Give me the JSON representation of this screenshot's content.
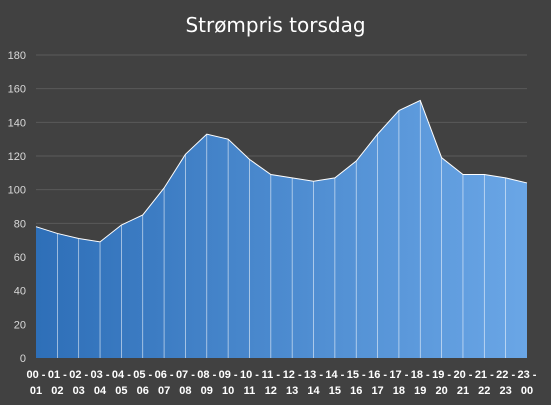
{
  "chart_data": {
    "type": "area",
    "title": "Strømpris torsdag",
    "xlabel": "",
    "ylabel": "",
    "ylim": [
      0,
      180
    ],
    "yticks": [
      0,
      20,
      40,
      60,
      80,
      100,
      120,
      140,
      160,
      180
    ],
    "grid": true,
    "legend": "none",
    "categories": [
      {
        "line1": "00 -",
        "line2": "01"
      },
      {
        "line1": "01 -",
        "line2": "02"
      },
      {
        "line1": "02 -",
        "line2": "03"
      },
      {
        "line1": "03 -",
        "line2": "04"
      },
      {
        "line1": "04 -",
        "line2": "05"
      },
      {
        "line1": "05 -",
        "line2": "06"
      },
      {
        "line1": "06 -",
        "line2": "07"
      },
      {
        "line1": "07 -",
        "line2": "08"
      },
      {
        "line1": "08 -",
        "line2": "09"
      },
      {
        "line1": "09 -",
        "line2": "10"
      },
      {
        "line1": "10 -",
        "line2": "11"
      },
      {
        "line1": "11 -",
        "line2": "12"
      },
      {
        "line1": "12 -",
        "line2": "13"
      },
      {
        "line1": "13 -",
        "line2": "14"
      },
      {
        "line1": "14 -",
        "line2": "15"
      },
      {
        "line1": "15 -",
        "line2": "16"
      },
      {
        "line1": "16 -",
        "line2": "17"
      },
      {
        "line1": "17 -",
        "line2": "18"
      },
      {
        "line1": "18 -",
        "line2": "19"
      },
      {
        "line1": "19 -",
        "line2": "20"
      },
      {
        "line1": "20 -",
        "line2": "21"
      },
      {
        "line1": "21 -",
        "line2": "22"
      },
      {
        "line1": "22 -",
        "line2": "23"
      },
      {
        "line1": "23 -",
        "line2": "00"
      }
    ],
    "series": [
      {
        "values": [
          78,
          74,
          71,
          69,
          79,
          85,
          101,
          121,
          133,
          130,
          118,
          109,
          107,
          105,
          107,
          117,
          133,
          147,
          153,
          119,
          109,
          109,
          107,
          104
        ]
      }
    ],
    "colors": {
      "background": "#414141",
      "gradient_start": "#2e6fb8",
      "gradient_end": "#6aa6e6",
      "outline": "#ffffff",
      "gridline": "#5a5a5a"
    }
  }
}
